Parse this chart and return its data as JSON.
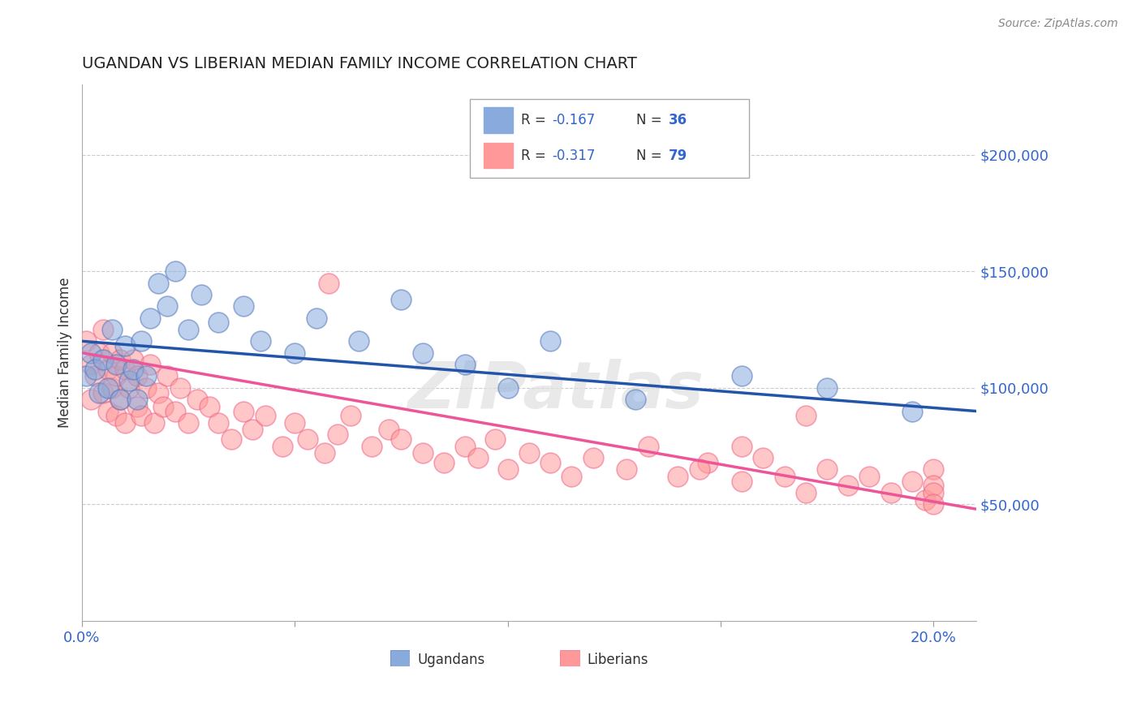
{
  "title": "UGANDAN VS LIBERIAN MEDIAN FAMILY INCOME CORRELATION CHART",
  "source": "Source: ZipAtlas.com",
  "ylabel": "Median Family Income",
  "xlim": [
    0.0,
    0.21
  ],
  "ylim": [
    0,
    230000
  ],
  "yticks": [
    50000,
    100000,
    150000,
    200000
  ],
  "ytick_labels": [
    "$50,000",
    "$100,000",
    "$150,000",
    "$200,000"
  ],
  "xticks": [
    0.0,
    0.05,
    0.1,
    0.15,
    0.2
  ],
  "xtick_labels": [
    "0.0%",
    "",
    "",
    "",
    "20.0%"
  ],
  "ugandan_color": "#88AADD",
  "liberian_color": "#FF9999",
  "ugandan_edge_color": "#5577BB",
  "liberian_edge_color": "#EE6688",
  "ugandan_line_color": "#2255AA",
  "liberian_line_color": "#EE5599",
  "ugandan_R": -0.167,
  "ugandan_N": 36,
  "liberian_R": -0.317,
  "liberian_N": 79,
  "watermark": "ZIPatlas",
  "background_color": "#ffffff",
  "legend_R_color": "#3366CC",
  "legend_N_color": "#3366CC",
  "legend_text_color": "#333333",
  "axis_label_color": "#3366CC",
  "ugandan_scatter_x": [
    0.001,
    0.002,
    0.003,
    0.004,
    0.005,
    0.006,
    0.007,
    0.008,
    0.009,
    0.01,
    0.011,
    0.012,
    0.013,
    0.014,
    0.015,
    0.016,
    0.018,
    0.02,
    0.022,
    0.025,
    0.028,
    0.032,
    0.038,
    0.042,
    0.05,
    0.055,
    0.065,
    0.075,
    0.08,
    0.09,
    0.1,
    0.11,
    0.13,
    0.155,
    0.175,
    0.195
  ],
  "ugandan_scatter_y": [
    105000,
    115000,
    108000,
    98000,
    112000,
    100000,
    125000,
    110000,
    95000,
    118000,
    103000,
    108000,
    95000,
    120000,
    105000,
    130000,
    145000,
    135000,
    150000,
    125000,
    140000,
    128000,
    135000,
    120000,
    115000,
    130000,
    120000,
    138000,
    115000,
    110000,
    100000,
    120000,
    95000,
    105000,
    100000,
    90000
  ],
  "liberian_scatter_x": [
    0.001,
    0.002,
    0.002,
    0.003,
    0.004,
    0.005,
    0.005,
    0.006,
    0.006,
    0.007,
    0.007,
    0.008,
    0.008,
    0.009,
    0.009,
    0.01,
    0.01,
    0.011,
    0.012,
    0.013,
    0.013,
    0.014,
    0.015,
    0.016,
    0.017,
    0.018,
    0.019,
    0.02,
    0.022,
    0.023,
    0.025,
    0.027,
    0.03,
    0.032,
    0.035,
    0.038,
    0.04,
    0.043,
    0.047,
    0.05,
    0.053,
    0.057,
    0.06,
    0.063,
    0.068,
    0.072,
    0.075,
    0.08,
    0.085,
    0.09,
    0.093,
    0.097,
    0.1,
    0.105,
    0.11,
    0.115,
    0.12,
    0.128,
    0.133,
    0.14,
    0.147,
    0.155,
    0.16,
    0.165,
    0.17,
    0.175,
    0.18,
    0.185,
    0.19,
    0.195,
    0.198,
    0.2,
    0.2,
    0.2,
    0.2,
    0.17,
    0.155,
    0.145,
    0.058
  ],
  "liberian_scatter_y": [
    120000,
    110000,
    95000,
    105000,
    115000,
    98000,
    125000,
    108000,
    90000,
    115000,
    100000,
    105000,
    88000,
    112000,
    95000,
    108000,
    85000,
    100000,
    112000,
    92000,
    105000,
    88000,
    100000,
    110000,
    85000,
    98000,
    92000,
    105000,
    90000,
    100000,
    85000,
    95000,
    92000,
    85000,
    78000,
    90000,
    82000,
    88000,
    75000,
    85000,
    78000,
    72000,
    80000,
    88000,
    75000,
    82000,
    78000,
    72000,
    68000,
    75000,
    70000,
    78000,
    65000,
    72000,
    68000,
    62000,
    70000,
    65000,
    75000,
    62000,
    68000,
    60000,
    70000,
    62000,
    55000,
    65000,
    58000,
    62000,
    55000,
    60000,
    52000,
    65000,
    58000,
    55000,
    50000,
    88000,
    75000,
    65000,
    145000
  ],
  "ugandan_line_x": [
    0.0,
    0.21
  ],
  "ugandan_line_y": [
    120000,
    90000
  ],
  "liberian_line_x": [
    0.0,
    0.21
  ],
  "liberian_line_y": [
    115000,
    48000
  ]
}
